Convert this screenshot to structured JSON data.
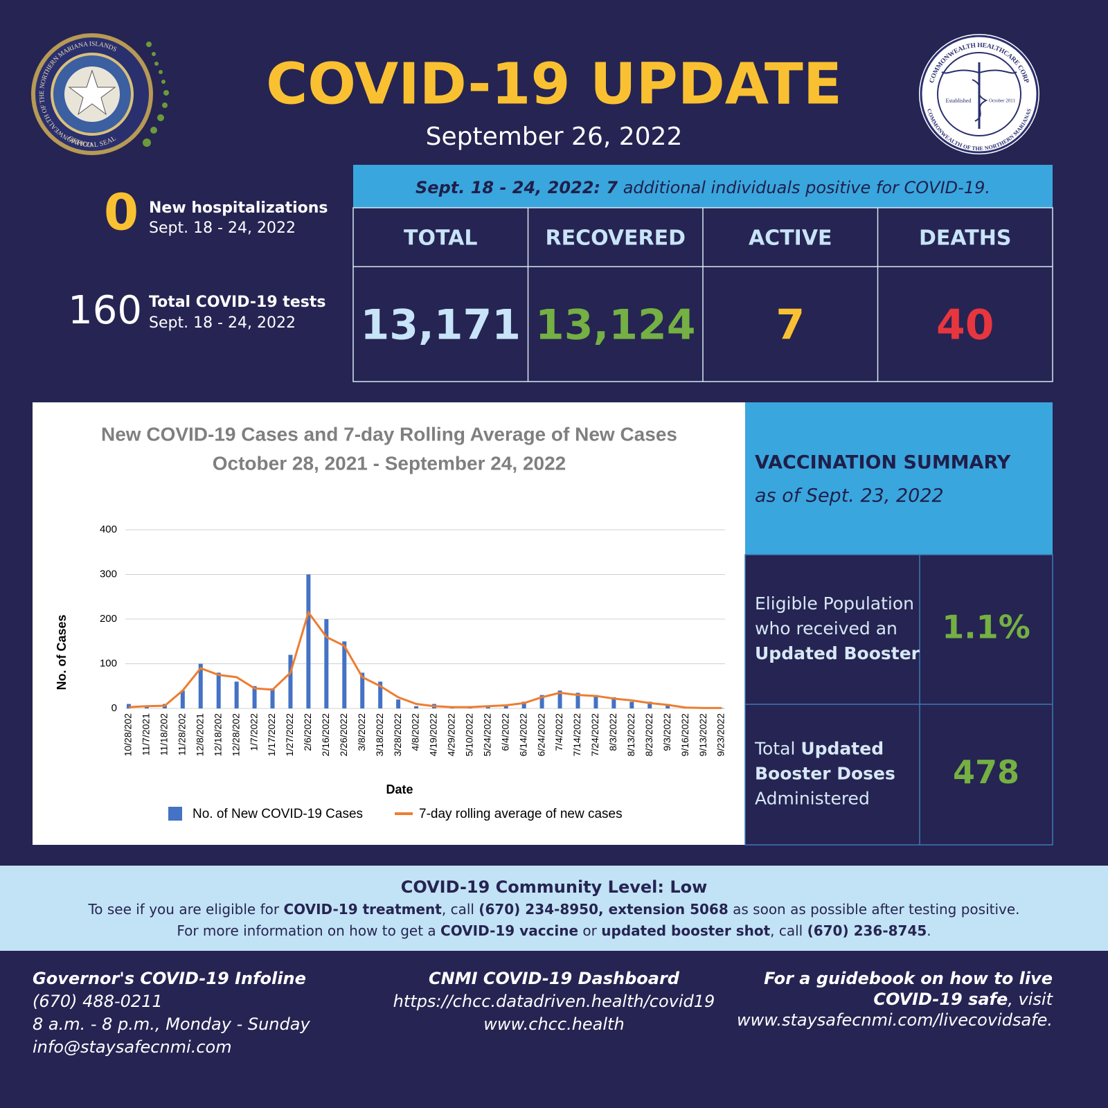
{
  "header": {
    "title": "COVID-19 UPDATE",
    "date": "September 26, 2022"
  },
  "seal_left": {
    "ring": "COMMONWEALTH OF THE NORTHERN MARIANA ISLANDS",
    "bottom": "OFFICIAL SEAL"
  },
  "seal_right": {
    "ring_top": "COMMONWEALTH HEALTHCARE CORP",
    "ring_bottom": "COMMONWEALTH OF THE NORTHERN MARIANAS",
    "left": "Established",
    "right": "October 2011"
  },
  "stats": [
    {
      "value": "0",
      "label": "New hospitalizations",
      "period": "Sept. 18 - 24, 2022"
    },
    {
      "value": "160",
      "label": "Total COVID-19 tests",
      "period": "Sept. 18 - 24, 2022"
    }
  ],
  "banner": [
    {
      "text": "Sept. 18 - 24, 2022: 7",
      "bold": true
    },
    {
      "text": " additional individuals positive for COVID-19.",
      "bold": false
    }
  ],
  "table": {
    "headers": [
      "TOTAL",
      "RECOVERED",
      "ACTIVE",
      "DEATHS"
    ],
    "values": [
      "13,171",
      "13,124",
      "7",
      "40"
    ],
    "colors": [
      "#c8e4f8",
      "#74b043",
      "#f9c132",
      "#e8363f"
    ]
  },
  "chart_data": {
    "type": "bar",
    "title": "New COVID-19 Cases and 7-day Rolling Average of New Cases",
    "subtitle": "October 28, 2021 - September 24, 2022",
    "x_label": "Date",
    "y_label": "No. of Cases",
    "categories": [
      "10/28/202",
      "11/7/2021",
      "11/18/202",
      "11/28/202",
      "12/8/2021",
      "12/18/202",
      "12/28/202",
      "1/7/2022",
      "1/17/2022",
      "1/27/2022",
      "2/6/2022",
      "2/16/2022",
      "2/26/2022",
      "3/8/2022",
      "3/18/2022",
      "3/28/2022",
      "4/8/2022",
      "4/19/2022",
      "4/29/2022",
      "5/10/2022",
      "5/24/2022",
      "6/4/2022",
      "6/14/2022",
      "6/24/2022",
      "7/4/2022",
      "7/14/2022",
      "7/24/2022",
      "8/3/2022",
      "8/13/2022",
      "8/23/2022",
      "9/3/2022",
      "9/16/2022",
      "9/13/2022",
      "9/23/2022"
    ],
    "series": [
      {
        "name": "No. of New COVID-19 Cases",
        "type": "bar",
        "color": "#4472c4",
        "values": [
          10,
          5,
          10,
          40,
          100,
          80,
          60,
          50,
          45,
          120,
          300,
          200,
          150,
          80,
          60,
          20,
          5,
          10,
          3,
          5,
          5,
          8,
          15,
          30,
          40,
          35,
          30,
          25,
          15,
          15,
          10,
          2,
          1,
          1
        ]
      },
      {
        "name": "7-day rolling average of new cases",
        "type": "line",
        "color": "#ed7d31",
        "values": [
          3,
          5,
          6,
          40,
          90,
          75,
          70,
          45,
          42,
          80,
          215,
          160,
          140,
          70,
          50,
          25,
          10,
          5,
          3,
          3,
          5,
          7,
          12,
          25,
          35,
          30,
          28,
          22,
          18,
          12,
          8,
          2,
          1,
          1
        ]
      }
    ],
    "ylim": [
      0,
      400
    ],
    "yticks": [
      0,
      100,
      200,
      300,
      400
    ],
    "grid": true
  },
  "vaccination": {
    "title": "VACCINATION SUMMARY",
    "subtitle": "as of Sept. 23, 2022",
    "rows": [
      {
        "lines": [
          [
            {
              "text": "Eligible Population",
              "bold": false
            }
          ],
          [
            {
              "text": "who received an",
              "bold": false
            }
          ],
          [
            {
              "text": "Updated Booster",
              "bold": true
            }
          ]
        ],
        "value": "1.1%"
      },
      {
        "lines": [
          [
            {
              "text": "Total ",
              "bold": false
            },
            {
              "text": "Updated",
              "bold": true
            }
          ],
          [
            {
              "text": "Booster Doses",
              "bold": true
            }
          ],
          [
            {
              "text": "Administered",
              "bold": false
            }
          ]
        ],
        "value": "478"
      }
    ]
  },
  "community": {
    "title": "COVID-19 Community Level: Low",
    "lines": [
      [
        {
          "text": "To see if you are eligible for ",
          "bold": false
        },
        {
          "text": "COVID-19 treatment",
          "bold": true
        },
        {
          "text": ", call ",
          "bold": false
        },
        {
          "text": "(670) 234-8950, extension 5068",
          "bold": true
        },
        {
          "text": " as soon as possible after testing positive.",
          "bold": false
        }
      ],
      [
        {
          "text": "For more information on how to get a ",
          "bold": false
        },
        {
          "text": "COVID-19 vaccine",
          "bold": true
        },
        {
          "text": " or ",
          "bold": false
        },
        {
          "text": "updated booster shot",
          "bold": true
        },
        {
          "text": ", call ",
          "bold": false
        },
        {
          "text": "(670) 236-8745",
          "bold": true
        },
        {
          "text": ".",
          "bold": false
        }
      ]
    ]
  },
  "footer": {
    "left": [
      [
        {
          "text": "Governor's COVID-19 Infoline",
          "bold": true
        }
      ],
      [
        {
          "text": "(670) 488-0211",
          "bold": false
        }
      ],
      [
        {
          "text": "8 a.m. - 8 p.m., Monday - Sunday",
          "bold": false
        }
      ],
      [
        {
          "text": "info@staysafecnmi.com",
          "bold": false
        }
      ]
    ],
    "center": [
      [
        {
          "text": "CNMI COVID-19 Dashboard",
          "bold": true
        }
      ],
      [
        {
          "text": "https://chcc.datadriven.health/covid19",
          "bold": false
        }
      ],
      [
        {
          "text": "www.chcc.health",
          "bold": false
        }
      ]
    ],
    "right": [
      [
        {
          "text": "For a guidebook on how to live",
          "bold": true
        }
      ],
      [
        {
          "text": "COVID-19 safe",
          "bold": true
        },
        {
          "text": ", visit",
          "bold": false
        }
      ],
      [
        {
          "text": "www.staysafecnmi.com/livecovidsafe.",
          "bold": false
        }
      ]
    ]
  }
}
